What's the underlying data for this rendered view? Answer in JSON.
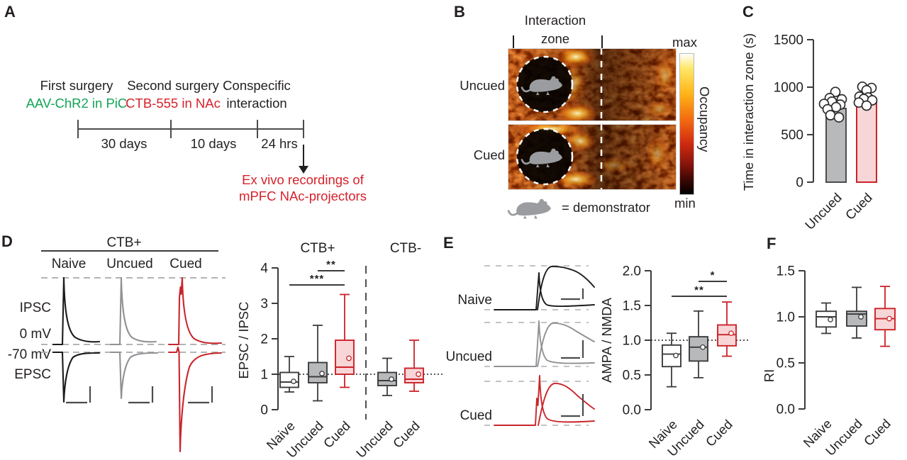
{
  "colors": {
    "green": "#13a456",
    "red": "#cc2229",
    "text_red": "#d6222b",
    "pink": "#f8d6d7",
    "gray": "#b7b9bb",
    "ink": "#231f20"
  },
  "panels": {
    "a": "A",
    "b": "B",
    "c": "C",
    "d": "D",
    "e": "E",
    "f": "F"
  },
  "panel_a": {
    "events": [
      {
        "title": "First surgery",
        "subtitle": "AAV-ChR2 in PiC"
      },
      {
        "title": "Second surgery",
        "subtitle": "CTB-555 in NAc"
      },
      {
        "title": "Conspecific",
        "subtitle": "interaction"
      }
    ],
    "durations": [
      "30 days",
      "10 days",
      "24 hrs"
    ],
    "outcome": [
      "Ex vivo recordings of",
      "mPFC NAc-projectors"
    ]
  },
  "panel_b": {
    "zone_line1": "Interaction",
    "zone_line2": "zone",
    "row_labels": [
      "Uncued",
      "Cued"
    ],
    "colorbar_max": "max",
    "colorbar_min": "min",
    "colorbar_label": "Occupancy",
    "legend_text": "= demonstrator"
  },
  "panel_d_traces": {
    "group": "CTB+",
    "cols": [
      "Naive",
      "Uncued",
      "Cued"
    ],
    "row1a": "IPSC",
    "row1b": "0 mV",
    "row2a": "-70 mV",
    "row2b": "EPSC"
  },
  "panel_e_traces": {
    "rows": [
      "Naive",
      "Uncued",
      "Cued"
    ]
  },
  "chart_data": [
    {
      "id": "C",
      "type": "bar",
      "ylabel": "Time in interaction zone (s)",
      "ylim": [
        0,
        1500
      ],
      "yticks": [
        0,
        500,
        1000,
        1500
      ],
      "categories": [
        "Uncued",
        "Cued"
      ],
      "values": [
        776,
        858
      ],
      "bars": [
        {
          "fill": "#b7b9bb",
          "stroke": "#4c4c4e"
        },
        {
          "fill": "#f8d6d7",
          "stroke": "#cc2229"
        }
      ],
      "points": [
        [
          950,
          885,
          872,
          848,
          824,
          816,
          790,
          768,
          705,
          682
        ],
        [
          1005,
          992,
          968,
          900,
          892,
          876,
          862,
          838,
          806
        ]
      ],
      "point_offsets": [
        [
          -1,
          -9,
          8,
          -6,
          -17,
          6,
          0,
          -12,
          -8,
          4
        ],
        [
          -6,
          7,
          0,
          -10,
          2,
          -4,
          8,
          -11,
          0
        ]
      ]
    },
    {
      "id": "D",
      "type": "box",
      "ylabel": "EPSC / IPSC",
      "ylim": [
        0,
        4
      ],
      "yticks": [
        0,
        1,
        2,
        3,
        4
      ],
      "ref_line": 1,
      "group_labels": [
        "CTB+",
        "CTB-"
      ],
      "categories": [
        "Naive",
        "Uncued",
        "Cued",
        "Uncued",
        "Cued"
      ],
      "boxes": [
        {
          "lo": 0.5,
          "q1": 0.63,
          "med": 0.78,
          "q3": 1.05,
          "hi": 1.5,
          "mean": 0.8,
          "fill": "#ffffff",
          "stroke": "#3c3c3e"
        },
        {
          "lo": 0.25,
          "q1": 0.76,
          "med": 0.93,
          "q3": 1.33,
          "hi": 2.38,
          "mean": 1.02,
          "fill": "#b7b9bb",
          "stroke": "#3c3c3e"
        },
        {
          "lo": 0.63,
          "q1": 1.0,
          "med": 1.2,
          "q3": 1.96,
          "hi": 3.25,
          "mean": 1.45,
          "fill": "#f8d6d7",
          "stroke": "#cc2229"
        },
        {
          "lo": 0.4,
          "q1": 0.68,
          "med": 0.82,
          "q3": 1.05,
          "hi": 1.45,
          "mean": 0.86,
          "fill": "#b7b9bb",
          "stroke": "#3c3c3e"
        },
        {
          "lo": 0.52,
          "q1": 0.76,
          "med": 0.86,
          "q3": 1.17,
          "hi": 1.96,
          "mean": 1.0,
          "fill": "#f8d6d7",
          "stroke": "#cc2229"
        }
      ],
      "significance": [
        {
          "from": 1,
          "to": 2,
          "label": "**"
        },
        {
          "from": 0,
          "to": 2,
          "label": "***"
        }
      ]
    },
    {
      "id": "E",
      "type": "box",
      "ylabel": "AMPA / NMDA",
      "ylim": [
        0,
        2
      ],
      "yticks": [
        0,
        0.5,
        1,
        1.5,
        2
      ],
      "tick_decimals": 1,
      "ref_line": 1,
      "categories": [
        "Naive",
        "Uncued",
        "Cued"
      ],
      "boxes": [
        {
          "lo": 0.33,
          "q1": 0.62,
          "med": 0.8,
          "q3": 0.93,
          "hi": 1.1,
          "mean": 0.78,
          "fill": "#ffffff",
          "stroke": "#3c3c3e"
        },
        {
          "lo": 0.46,
          "q1": 0.7,
          "med": 0.9,
          "q3": 1.05,
          "hi": 1.42,
          "mean": 0.9,
          "fill": "#b7b9bb",
          "stroke": "#3c3c3e"
        },
        {
          "lo": 0.77,
          "q1": 0.92,
          "med": 1.08,
          "q3": 1.22,
          "hi": 1.55,
          "mean": 1.1,
          "fill": "#f8d6d7",
          "stroke": "#cc2229"
        }
      ],
      "significance": [
        {
          "from": 1,
          "to": 2,
          "label": "*"
        },
        {
          "from": 0,
          "to": 2,
          "label": "**"
        }
      ]
    },
    {
      "id": "F",
      "type": "box",
      "ylabel": "RI",
      "ylim": [
        0,
        1.5
      ],
      "yticks": [
        0,
        0.5,
        1,
        1.5
      ],
      "tick_decimals": 1,
      "categories": [
        "Naive",
        "Uncued",
        "Cued"
      ],
      "boxes": [
        {
          "lo": 0.82,
          "q1": 0.89,
          "med": 1.0,
          "q3": 1.06,
          "hi": 1.15,
          "mean": 0.97,
          "fill": "#ffffff",
          "stroke": "#3c3c3e"
        },
        {
          "lo": 0.77,
          "q1": 0.9,
          "med": 1.03,
          "q3": 1.06,
          "hi": 1.32,
          "mean": 1.0,
          "fill": "#b7b9bb",
          "stroke": "#3c3c3e"
        },
        {
          "lo": 0.68,
          "q1": 0.86,
          "med": 0.98,
          "q3": 1.09,
          "hi": 1.33,
          "mean": 0.98,
          "fill": "#f8d6d7",
          "stroke": "#cc2229"
        }
      ]
    }
  ]
}
